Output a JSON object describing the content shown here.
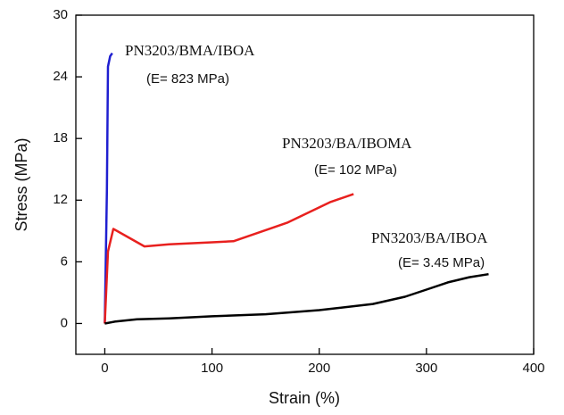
{
  "chart_data": {
    "type": "line",
    "x_label": "Strain (%)",
    "y_label": "Stress (MPa)",
    "xlim": [
      -27,
      400
    ],
    "ylim": [
      -3,
      30
    ],
    "xticks": [
      0,
      100,
      200,
      300,
      400
    ],
    "yticks": [
      0,
      6,
      12,
      18,
      24,
      30
    ],
    "series": [
      {
        "name": "PN3203/BMA/IBOA",
        "color": "#1f1fd0",
        "x": [
          0,
          2,
          3,
          5,
          7
        ],
        "values": [
          0,
          13,
          25,
          26,
          26.3
        ]
      },
      {
        "name": "PN3203/BA/IBOMA",
        "color": "#e8201e",
        "x": [
          0,
          3,
          8,
          20,
          37,
          60,
          100,
          120,
          170,
          210,
          232
        ],
        "values": [
          0,
          7,
          9.2,
          8.5,
          7.5,
          7.7,
          7.9,
          8.0,
          9.8,
          11.8,
          12.6
        ]
      },
      {
        "name": "PN3203/BA/IBOA",
        "color": "#000000",
        "x": [
          0,
          10,
          30,
          60,
          100,
          150,
          200,
          250,
          280,
          300,
          320,
          340,
          358
        ],
        "values": [
          0,
          0.2,
          0.4,
          0.5,
          0.7,
          0.9,
          1.3,
          1.9,
          2.6,
          3.3,
          4.0,
          4.5,
          4.8
        ]
      }
    ],
    "annotations": [
      "(E= 823 MPa)",
      "(E= 102 MPa)",
      "(E= 3.45 MPa)"
    ]
  }
}
